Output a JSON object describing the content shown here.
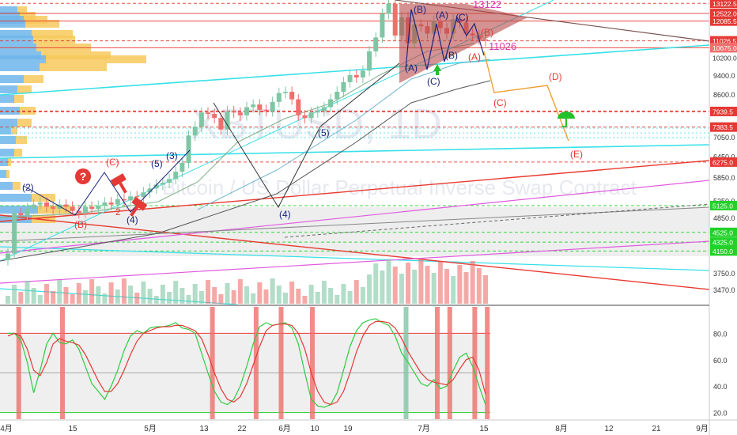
{
  "colors": {
    "up": "#7fc6a4",
    "down": "#ef6f6c",
    "vp_blue": "#6fb5ea",
    "vp_yellow": "#f7c95c",
    "cyan": "#38e0e8",
    "magenta": "#e05adf",
    "red_line": "#e83a30",
    "green_dash": "#22d12a",
    "triangle": "#b84a4a",
    "stoch_k": "#2ecc40",
    "stoch_d": "#e53935",
    "orange": "#f0a030",
    "purple_label": "#d63ab0"
  },
  "watermark": "XBTUSD, 1D",
  "watermark_sub": "Bitcoin / US Dollar Perpetual Inverse Swap Contract",
  "chart_data": [
    {
      "type": "candlestick",
      "price_axis": {
        "scale": "log",
        "ticks": [
          "9400.0",
          "8600.0",
          "7050.0",
          "6450.0",
          "5850.0",
          "5250.0",
          "4850.0",
          "3750.0",
          "3470.0"
        ],
        "badges": [
          {
            "label": "13122.5",
            "price": 13122.5,
            "color": "#e53935"
          },
          {
            "label": "12522.0",
            "price": 12522.0,
            "color": "#e53935"
          },
          {
            "label": "12085.5",
            "price": 12085.5,
            "color": "#e53935"
          },
          {
            "label": "11026.5",
            "price": 11026.5,
            "color": "#e53935"
          },
          {
            "label": "10675.0",
            "price": 10675.0,
            "color": "#ef6f6c"
          },
          {
            "label": "10200.0",
            "price": 10200.0,
            "color": "none"
          },
          {
            "label": "7939.5",
            "price": 7939.5,
            "color": "#e53935"
          },
          {
            "label": "7383.5",
            "price": 7383.5,
            "color": "#e53935"
          },
          {
            "label": "6275.0",
            "price": 6275.0,
            "color": "#e53935"
          },
          {
            "label": "5125.0",
            "price": 5125.0,
            "color": "#22d12a"
          },
          {
            "label": "4525.0",
            "price": 4525.0,
            "color": "#22d12a"
          },
          {
            "label": "4325.0",
            "price": 4325.0,
            "color": "#22d12a"
          },
          {
            "label": "4150.0",
            "price": 4150.0,
            "color": "#22d12a"
          }
        ]
      },
      "time_axis": [
        "4月",
        "15",
        "5月",
        "13",
        "22",
        "6月",
        "10",
        "19",
        "7月",
        "15",
        "8月",
        "12",
        "21",
        "9月"
      ],
      "ohlc_close": [
        4100,
        4950,
        4900,
        5050,
        5150,
        5200,
        5100,
        5050,
        5150,
        5100,
        5000,
        4950,
        5100,
        5050,
        5120,
        5200,
        5150,
        5280,
        5250,
        5350,
        5330,
        5450,
        5550,
        5650,
        5700,
        5800,
        6000,
        6250,
        7100,
        7400,
        7900,
        7850,
        7700,
        7300,
        7950,
        7900,
        7800,
        8100,
        8200,
        8000,
        7950,
        8300,
        8650,
        8700,
        8400,
        7800,
        7700,
        7900,
        7950,
        8100,
        8400,
        8700,
        9100,
        9400,
        9300,
        9600,
        10500,
        11200,
        12500,
        13100,
        11300,
        12300,
        10900,
        11900,
        11800,
        11400,
        12100,
        11700,
        11400,
        12200,
        12000,
        11400,
        11300,
        11100,
        11026
      ],
      "price_levels": [
        13122.5,
        12522.0,
        12085.5,
        11026.5,
        10675.0,
        7939.5,
        7383.5,
        6275.0,
        5125.0,
        4525.0,
        4325.0,
        4150.0
      ],
      "current_price": "11026",
      "peak_label": "13122"
    },
    {
      "type": "line",
      "indicator": "stochastic",
      "yticks": [
        "80.0",
        "60.0",
        "40.0",
        "20.0"
      ],
      "ylim": [
        15,
        100
      ],
      "series": [
        {
          "values": [
            80,
            80,
            75,
            58,
            35,
            52,
            72,
            80,
            73,
            72,
            75,
            68,
            55,
            42,
            36,
            30,
            40,
            52,
            67,
            78,
            82,
            80,
            84,
            85,
            85,
            86,
            88,
            84,
            83,
            80,
            65,
            50,
            36,
            28,
            26,
            30,
            40,
            55,
            72,
            85,
            88,
            86,
            87,
            88,
            84,
            72,
            50,
            30,
            25,
            24,
            26,
            35,
            52,
            70,
            82,
            88,
            90,
            91,
            88,
            86,
            78,
            65,
            58,
            50,
            42,
            40,
            45,
            38,
            40,
            52,
            62,
            65,
            55,
            40,
            26
          ]
        },
        {
          "values": [
            78,
            80,
            78,
            68,
            52,
            48,
            58,
            72,
            76,
            74,
            73,
            71,
            64,
            54,
            44,
            36,
            36,
            42,
            52,
            64,
            74,
            80,
            82,
            84,
            85,
            85,
            86,
            86,
            84,
            82,
            76,
            64,
            50,
            38,
            30,
            28,
            32,
            42,
            56,
            70,
            82,
            86,
            87,
            87,
            86,
            80,
            68,
            50,
            36,
            28,
            26,
            28,
            36,
            50,
            66,
            78,
            86,
            89,
            89,
            88,
            84,
            76,
            66,
            58,
            50,
            45,
            43,
            42,
            41,
            45,
            53,
            60,
            62,
            52,
            34
          ]
        }
      ]
    }
  ],
  "wave_labels": [
    {
      "text": "(B)",
      "color": "#1a237e"
    },
    {
      "text": "(A)",
      "color": "#1a237e"
    },
    {
      "text": "(C)",
      "color": "#1a237e"
    },
    {
      "text": "(B)",
      "color": "#1a237e"
    },
    {
      "text": "(A)",
      "color": "#1a237e"
    },
    {
      "text": "(C)",
      "color": "#1a237e"
    },
    {
      "text": "(B)",
      "color": "#e53935"
    },
    {
      "text": "(A)",
      "color": "#e53935"
    },
    {
      "text": "(D)",
      "color": "#e53935"
    },
    {
      "text": "(C)",
      "color": "#e53935"
    },
    {
      "text": "(E)",
      "color": "#e53935"
    },
    {
      "text": "(5)",
      "color": "#1a237e"
    },
    {
      "text": "(4)",
      "color": "#1a237e"
    },
    {
      "text": "(3)",
      "color": "#1a237e"
    },
    {
      "text": "(5)",
      "color": "#1a237e"
    },
    {
      "text": "(C)",
      "color": "#e53935"
    },
    {
      "text": "(B)",
      "color": "#e53935"
    },
    {
      "text": "(2)",
      "color": "#1a237e"
    },
    {
      "text": "(4)",
      "color": "#1a237e"
    },
    {
      "text": "2",
      "color": "#e53935"
    }
  ],
  "icons": {
    "question": "question-icon",
    "umbrella": "umbrella-icon",
    "arrow_up": "arrow-up-icon",
    "hammer": "hammer-icon"
  }
}
